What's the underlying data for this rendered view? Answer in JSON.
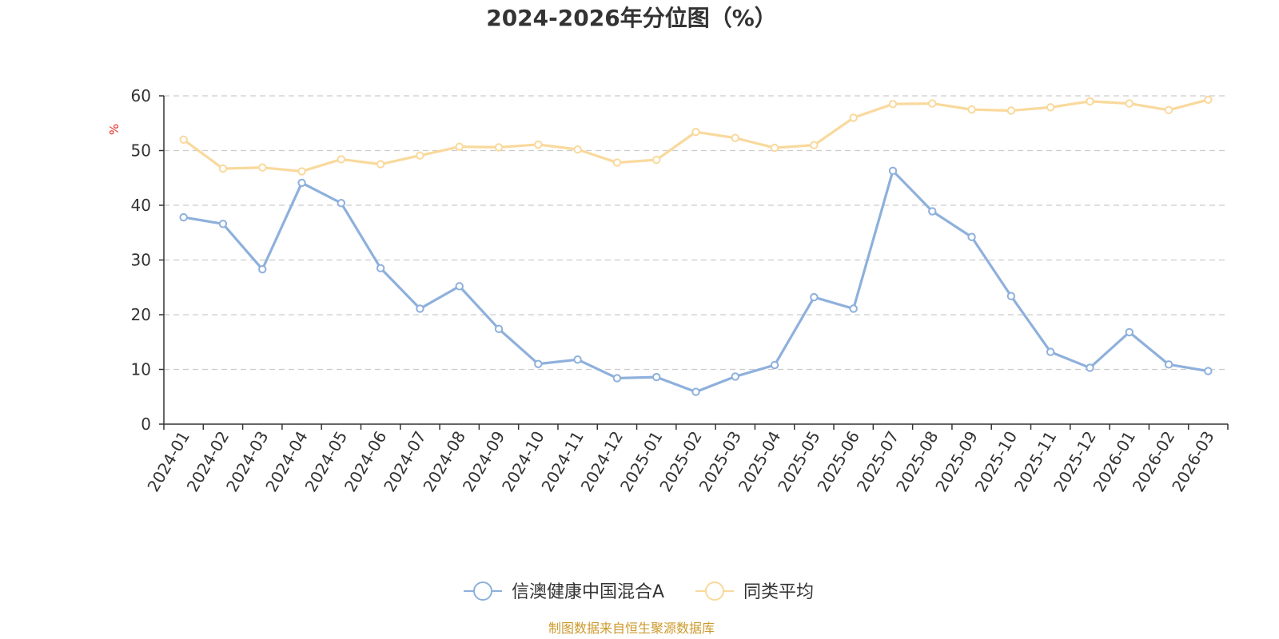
{
  "chart_data": {
    "type": "line",
    "title": "2024-2026年分位图（%）",
    "xlabel": "",
    "ylabel": "%",
    "ylim": [
      0,
      60
    ],
    "yticks": [
      0,
      10,
      20,
      30,
      40,
      50,
      60
    ],
    "grid": true,
    "legend_position": "bottom-center",
    "categories": [
      "2024-01",
      "2024-02",
      "2024-03",
      "2024-04",
      "2024-05",
      "2024-06",
      "2024-07",
      "2024-08",
      "2024-09",
      "2024-10",
      "2024-11",
      "2024-12",
      "2025-01",
      "2025-02",
      "2025-03",
      "2025-04",
      "2025-05",
      "2025-06",
      "2025-07",
      "2025-08",
      "2025-09",
      "2025-10",
      "2025-11",
      "2025-12",
      "2026-01",
      "2026-02",
      "2026-03"
    ],
    "series": [
      {
        "name": "信澳健康中国混合A",
        "color": "#8eb0dc",
        "values": [
          37.8,
          36.6,
          28.3,
          44.1,
          40.4,
          28.5,
          21.1,
          25.2,
          17.4,
          11.0,
          11.8,
          8.4,
          8.6,
          5.9,
          8.7,
          10.8,
          23.2,
          21.1,
          46.3,
          38.9,
          34.2,
          23.4,
          13.2,
          10.3,
          16.8,
          10.9,
          9.7
        ]
      },
      {
        "name": "同类平均",
        "color": "#f9d99c",
        "values": [
          52.0,
          46.7,
          46.9,
          46.2,
          48.4,
          47.5,
          49.1,
          50.7,
          50.6,
          51.1,
          50.2,
          47.8,
          48.3,
          53.4,
          52.3,
          50.5,
          51.0,
          56.0,
          58.5,
          58.6,
          57.5,
          57.3,
          57.9,
          59.0,
          58.6,
          57.4,
          59.3
        ]
      }
    ]
  },
  "source_text": "制图数据来自恒生聚源数据库",
  "colors": {
    "axis": "#333333",
    "grid": "#cccccc",
    "ylabel": "#e8251f",
    "source": "#cc9a2c"
  }
}
